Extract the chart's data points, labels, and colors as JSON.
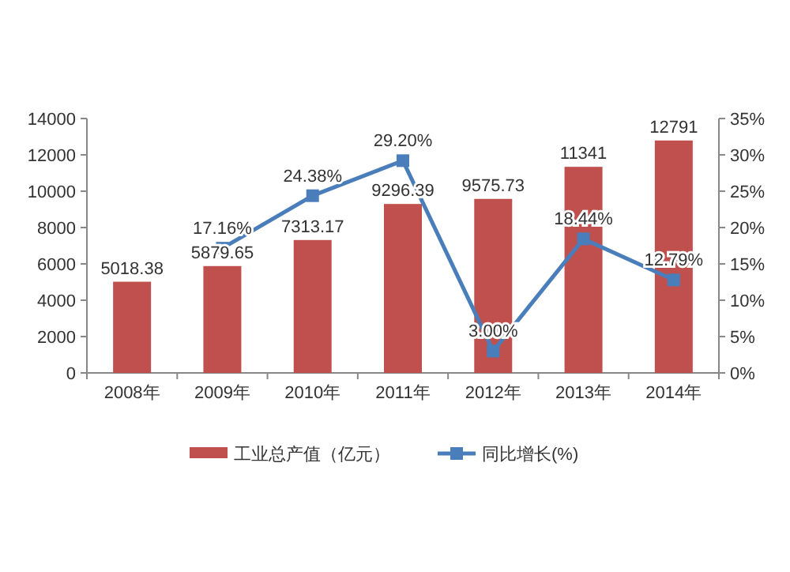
{
  "chart_data": {
    "type": "bar",
    "categories": [
      "2008年",
      "2009年",
      "2010年",
      "2011年",
      "2012年",
      "2013年",
      "2014年"
    ],
    "series": [
      {
        "name": "工业总产值（亿元）",
        "color": "#c0504d",
        "values": [
          5018.38,
          5879.65,
          7313.17,
          9296.39,
          9575.73,
          11341,
          12791
        ],
        "data_labels": true
      },
      {
        "name": "同比增长(%)",
        "type": "line",
        "axis": "y2",
        "color": "#4a7ebb",
        "marker": "square",
        "values": [
          null,
          17.16,
          24.38,
          29.2,
          3.0,
          18.44,
          12.79
        ],
        "value_labels": [
          null,
          "17.16%",
          "24.38%",
          "29.20%",
          "3.00%",
          "18.44%",
          "12.79%"
        ]
      }
    ],
    "ylim": [
      0,
      14000
    ],
    "yticks": [
      0,
      2000,
      4000,
      6000,
      8000,
      10000,
      12000,
      14000
    ],
    "y2lim": [
      0,
      35
    ],
    "y2ticks": [
      {
        "value": 0,
        "label": "0%"
      },
      {
        "value": 5,
        "label": "5%"
      },
      {
        "value": 10,
        "label": "10%"
      },
      {
        "value": 15,
        "label": "15%"
      },
      {
        "value": 20,
        "label": "20%"
      },
      {
        "value": 25,
        "label": "25%"
      },
      {
        "value": 30,
        "label": "30%"
      },
      {
        "value": 35,
        "label": "35%"
      }
    ],
    "legend": "bottom",
    "grid": false
  }
}
